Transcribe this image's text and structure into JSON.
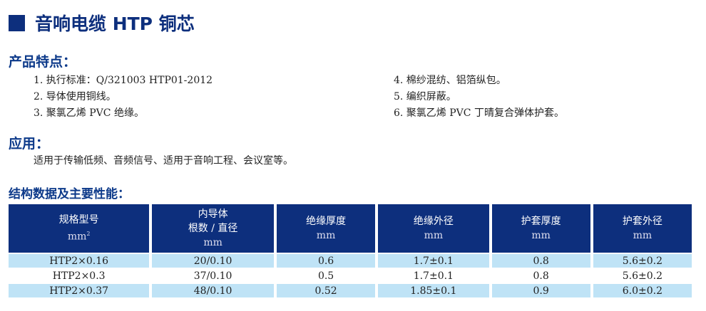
{
  "title": "音响电缆 HTP 铜芯",
  "features": {
    "heading": "产品特点：",
    "items": [
      "1. 执行标准：Q/321003  HTP01-2012",
      "2. 导体使用铜线。",
      "3. 聚氯乙烯 PVC 绝缘。",
      "4. 棉纱混纺、铝箔纵包。",
      "5. 编织屏蔽。",
      "6. 聚氯乙烯 PVC 丁晴复合弹体护套。"
    ]
  },
  "application": {
    "heading": "应用：",
    "text": "适用于传输低频、音频信号、适用于音响工程、会议室等。"
  },
  "table": {
    "heading": "结构数据及主要性能：",
    "headers": [
      [
        "规格型号",
        "mm",
        "2"
      ],
      [
        "内导体",
        "根数 / 直径",
        "mm"
      ],
      [
        "绝缘厚度",
        "mm"
      ],
      [
        "绝缘外径",
        "mm"
      ],
      [
        "护套厚度",
        "mm"
      ],
      [
        "护套外径",
        "mm"
      ]
    ],
    "rows": [
      [
        "HTP2×0.16",
        "20/0.10",
        "0.6",
        "1.7±0.1",
        "0.8",
        "5.6±0.2"
      ],
      [
        "HTP2×0.3",
        "37/0.10",
        "0.5",
        "1.7±0.1",
        "0.8",
        "5.6±0.2"
      ],
      [
        "HTP2×0.37",
        "48/0.10",
        "0.52",
        "1.85±0.1",
        "0.9",
        "6.0±0.2"
      ]
    ]
  },
  "colors": {
    "header": "#0d2f7d",
    "row_alt": "#bfe3f6"
  }
}
